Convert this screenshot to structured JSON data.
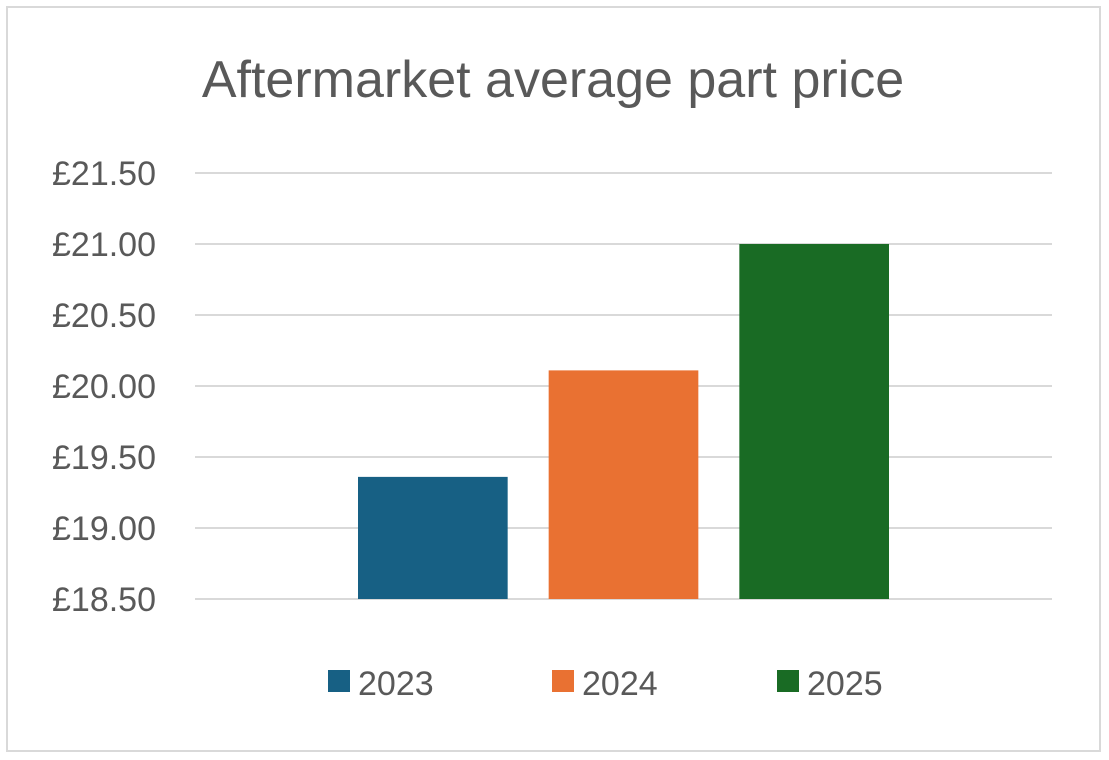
{
  "chart_data": {
    "type": "bar",
    "title": "Aftermarket average part price",
    "xlabel": "",
    "ylabel": "",
    "categories": [
      "2023",
      "2024",
      "2025"
    ],
    "series": [
      {
        "name": "2023",
        "values": [
          19.36,
          null,
          null
        ],
        "color": "#176084"
      },
      {
        "name": "2024",
        "values": [
          null,
          20.11,
          null
        ],
        "color": "#e97132"
      },
      {
        "name": "2025",
        "values": [
          null,
          null,
          21.0
        ],
        "color": "#196b24"
      }
    ],
    "values": [
      19.36,
      20.11,
      21.0
    ],
    "colors": [
      "#176084",
      "#e97132",
      "#196b24"
    ],
    "ylim": [
      18.5,
      21.5
    ],
    "y_ticks": [
      21.5,
      21.0,
      20.5,
      20.0,
      19.5,
      19.0,
      18.5
    ],
    "y_tick_labels": [
      "£21.50",
      "£21.00",
      "£20.50",
      "£20.00",
      "£19.50",
      "£19.00",
      "£18.50"
    ],
    "grid": true,
    "legend": {
      "position": "bottom",
      "entries": [
        "2023",
        "2024",
        "2025"
      ]
    }
  }
}
